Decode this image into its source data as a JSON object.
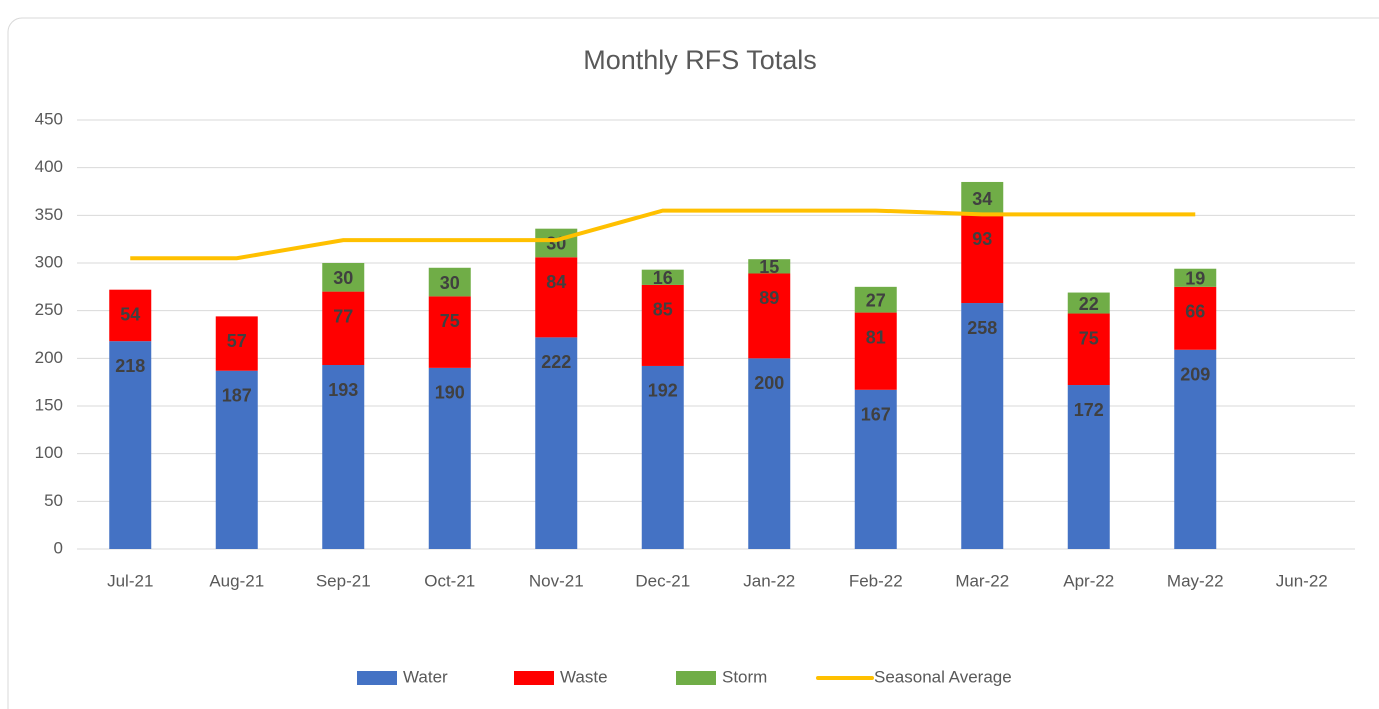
{
  "chart_data": {
    "type": "bar",
    "stacked": true,
    "title": "Monthly RFS Totals",
    "categories": [
      "Jul-21",
      "Aug-21",
      "Sep-21",
      "Oct-21",
      "Nov-21",
      "Dec-21",
      "Jan-22",
      "Feb-22",
      "Mar-22",
      "Apr-22",
      "May-22",
      "Jun-22"
    ],
    "series": [
      {
        "name": "Water",
        "color": "#4472c4",
        "values": [
          218,
          187,
          193,
          190,
          222,
          192,
          200,
          167,
          258,
          172,
          209,
          null
        ]
      },
      {
        "name": "Waste",
        "color": "#ff0000",
        "values": [
          54,
          57,
          77,
          75,
          84,
          85,
          89,
          81,
          93,
          75,
          66,
          null
        ]
      },
      {
        "name": "Storm",
        "color": "#70ad47",
        "values": [
          null,
          null,
          30,
          30,
          30,
          16,
          15,
          27,
          34,
          22,
          19,
          null
        ]
      },
      {
        "name": "Seasonal Average",
        "type": "line",
        "color": "#ffc000",
        "values": [
          305,
          305,
          324,
          324,
          324,
          355,
          355,
          355,
          351,
          351,
          351,
          null
        ]
      }
    ],
    "ylim": [
      0,
      450
    ],
    "yticks": [
      0,
      50,
      100,
      150,
      200,
      250,
      300,
      350,
      400,
      450
    ],
    "grid": true,
    "legend": "bottom"
  }
}
